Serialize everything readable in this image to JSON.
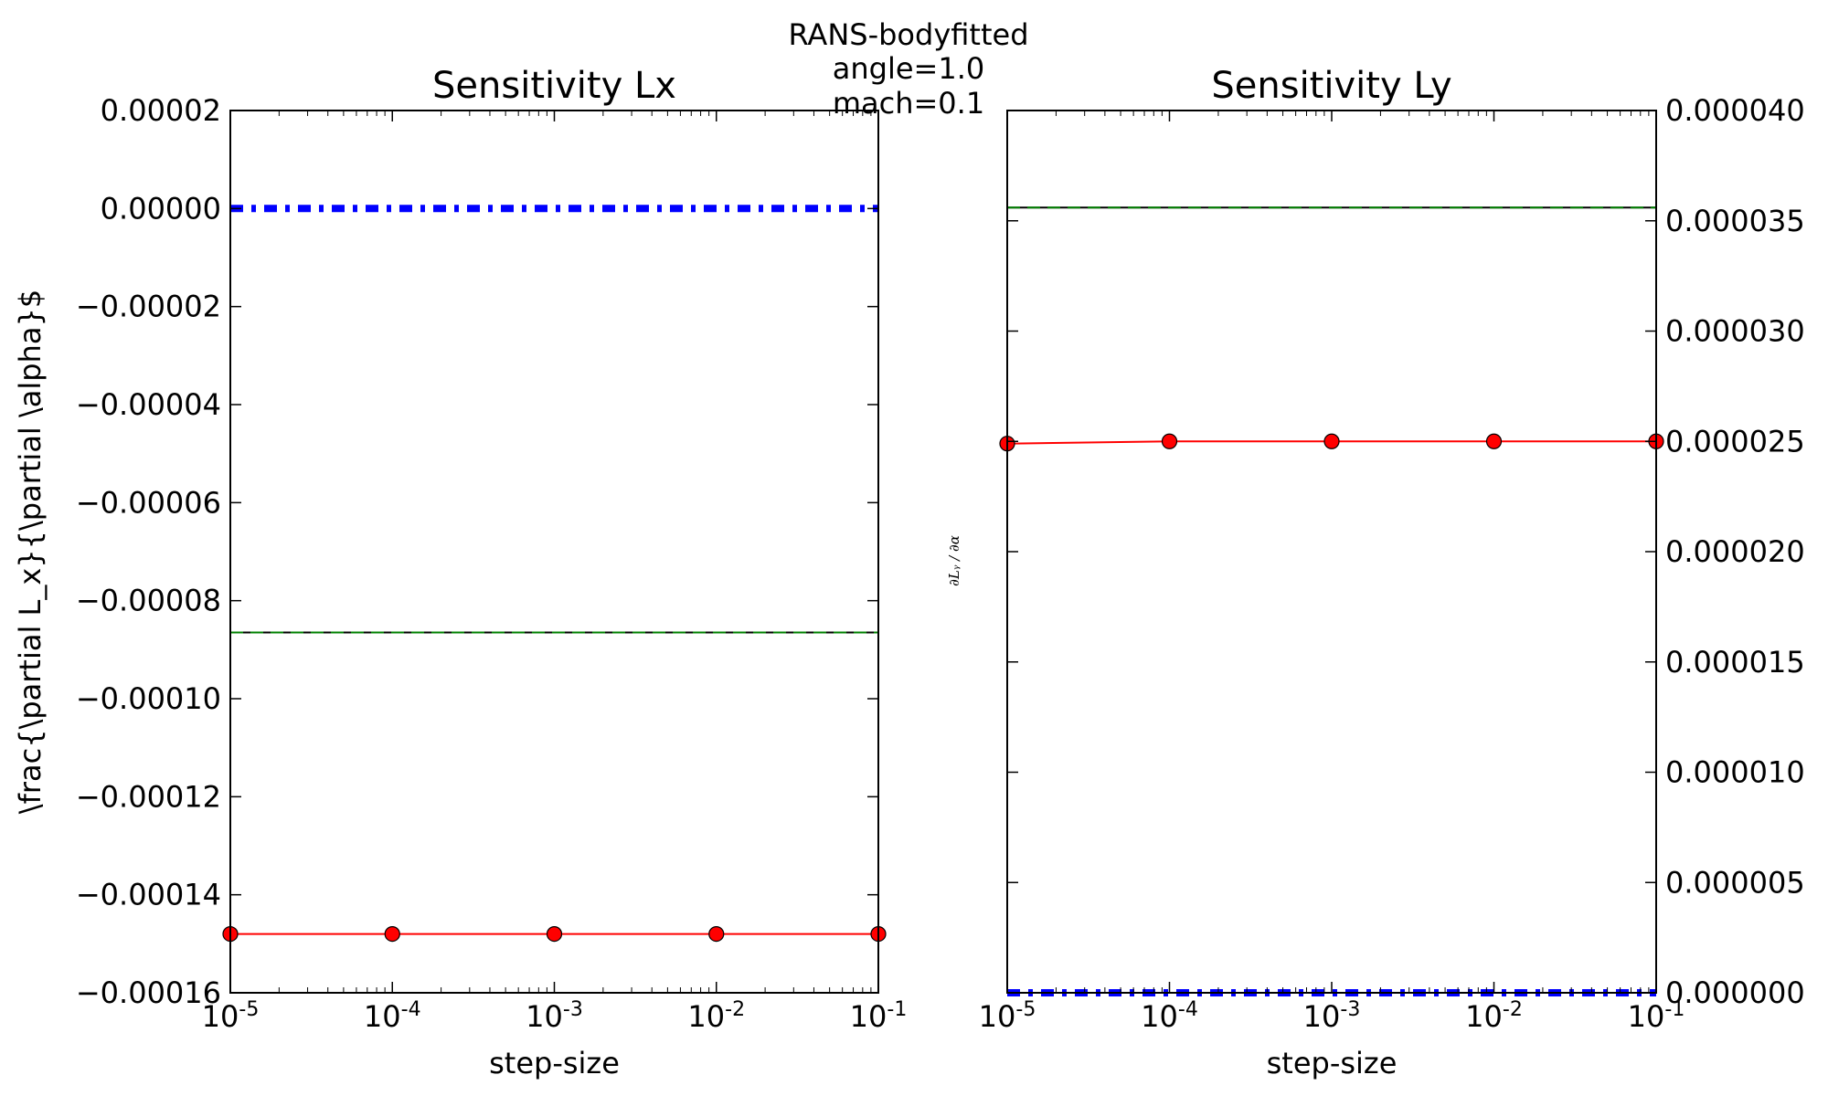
{
  "figure": {
    "suptitle_lines": [
      "RANS-bodyfitted",
      "angle=1.0",
      "mach=0.1"
    ]
  },
  "chart_data": [
    {
      "type": "line",
      "title": "Sensitivity Lx",
      "xlabel": "step-size",
      "ylabel": "\\frac{\\partial L_x}{\\partial \\alpha}$",
      "xscale": "log",
      "xlim": [
        1e-05,
        0.1
      ],
      "ylim": [
        -0.00016,
        2e-05
      ],
      "yaxis_side": "left",
      "grid": false,
      "x_tick_labels": [
        {
          "base": "10",
          "exp": "-5"
        },
        {
          "base": "10",
          "exp": "-4"
        },
        {
          "base": "10",
          "exp": "-3"
        },
        {
          "base": "10",
          "exp": "-2"
        },
        {
          "base": "10",
          "exp": "-1"
        }
      ],
      "y_ticks": [
        2e-05,
        0,
        -2e-05,
        -4e-05,
        -6e-05,
        -8e-05,
        -0.0001,
        -0.00012,
        -0.00014,
        -0.00016
      ],
      "y_tick_labels": [
        "0.00002",
        "0.00000",
        "−0.00002",
        "−0.00004",
        "−0.00006",
        "−0.00008",
        "−0.00010",
        "−0.00012",
        "−0.00014",
        "−0.00016"
      ],
      "series": [
        {
          "style": "dash-dot",
          "color": "#0000ff",
          "x": [
            1e-05,
            0.1
          ],
          "y": [
            0.0,
            0.0
          ]
        },
        {
          "style": "solid",
          "color": "#000000",
          "x": [
            1e-05,
            0.1
          ],
          "y": [
            -8.65e-05,
            -8.65e-05
          ]
        },
        {
          "style": "dashed",
          "color": "#008000",
          "x": [
            1e-05,
            0.1
          ],
          "y": [
            -8.65e-05,
            -8.65e-05
          ]
        },
        {
          "style": "solid-marker",
          "color": "#ff0000",
          "x": [
            1e-05,
            0.0001,
            0.001,
            0.01,
            0.1
          ],
          "y": [
            -0.000148,
            -0.000148,
            -0.000148,
            -0.000148,
            -0.000148
          ]
        }
      ]
    },
    {
      "type": "line",
      "title": "Sensitivity Ly",
      "xlabel": "step-size",
      "ylabel": "∂Lᵧ / ∂α",
      "xscale": "log",
      "xlim": [
        1e-05,
        0.1
      ],
      "ylim": [
        0,
        4e-05
      ],
      "yaxis_side": "right",
      "grid": false,
      "x_tick_labels": [
        {
          "base": "10",
          "exp": "-5"
        },
        {
          "base": "10",
          "exp": "-4"
        },
        {
          "base": "10",
          "exp": "-3"
        },
        {
          "base": "10",
          "exp": "-2"
        },
        {
          "base": "10",
          "exp": "-1"
        }
      ],
      "y_ticks": [
        4e-05,
        3.5e-05,
        3e-05,
        2.5e-05,
        2e-05,
        1.5e-05,
        1e-05,
        5e-06,
        0
      ],
      "y_tick_labels": [
        "0.000040",
        "0.000035",
        "0.000030",
        "0.000025",
        "0.000020",
        "0.000015",
        "0.000010",
        "0.000005",
        "0.000000"
      ],
      "series": [
        {
          "style": "dash-dot",
          "color": "#0000ff",
          "x": [
            1e-05,
            0.1
          ],
          "y": [
            0.0,
            0.0
          ]
        },
        {
          "style": "solid",
          "color": "#000000",
          "x": [
            1e-05,
            0.1
          ],
          "y": [
            3.56e-05,
            3.56e-05
          ]
        },
        {
          "style": "dashed",
          "color": "#008000",
          "x": [
            1e-05,
            0.1
          ],
          "y": [
            3.56e-05,
            3.56e-05
          ]
        },
        {
          "style": "solid-marker",
          "color": "#ff0000",
          "x": [
            1e-05,
            0.0001,
            0.001,
            0.01,
            0.1
          ],
          "y": [
            2.49e-05,
            2.5e-05,
            2.5e-05,
            2.5e-05,
            2.5e-05
          ]
        }
      ]
    }
  ]
}
